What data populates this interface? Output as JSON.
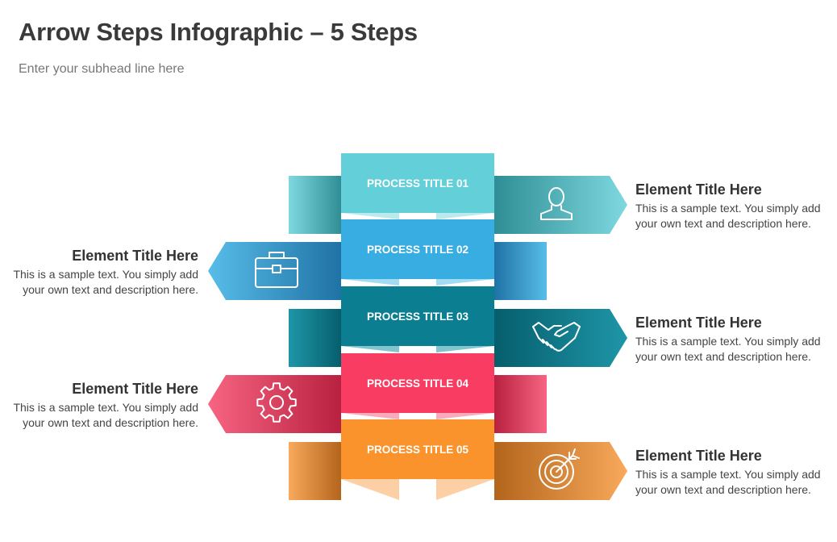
{
  "title": "Arrow Steps Infographic – 5 Steps",
  "subtitle": "Enter your subhead line here",
  "steps": [
    {
      "process_title": "PROCESS TITLE 01",
      "element_title": "Element Title Here",
      "description": "This is a sample text. You simply add your own text and description here.",
      "icon": "user-icon",
      "side": "right",
      "color": "#62cfd9",
      "dark": "#2f8e95",
      "light": "#7fd8e0"
    },
    {
      "process_title": "PROCESS TITLE 02",
      "element_title": "Element Title Here",
      "description": "This is a sample text. You simply add your own text and description here.",
      "icon": "briefcase-icon",
      "side": "left",
      "color": "#38ade2",
      "dark": "#1f72a5",
      "light": "#58bde9"
    },
    {
      "process_title": "PROCESS TITLE 03",
      "element_title": "Element Title Here",
      "description": "This is a sample text. You simply add your own text and description here.",
      "icon": "handshake-icon",
      "side": "right",
      "color": "#0b7f91",
      "dark": "#065e6c",
      "light": "#1e96a8"
    },
    {
      "process_title": "PROCESS TITLE 04",
      "element_title": "Element Title Here",
      "description": "This is a sample text. You simply add your own text and description here.",
      "icon": "gear-icon",
      "side": "left",
      "color": "#f83c62",
      "dark": "#b8213f",
      "light": "#f76582"
    },
    {
      "process_title": "PROCESS TITLE 05",
      "element_title": "Element Title Here",
      "description": "This is a sample text. You simply add your own text and description here.",
      "icon": "target-icon",
      "side": "right",
      "color": "#fb932d",
      "dark": "#b3651c",
      "light": "#f9a95a"
    }
  ]
}
